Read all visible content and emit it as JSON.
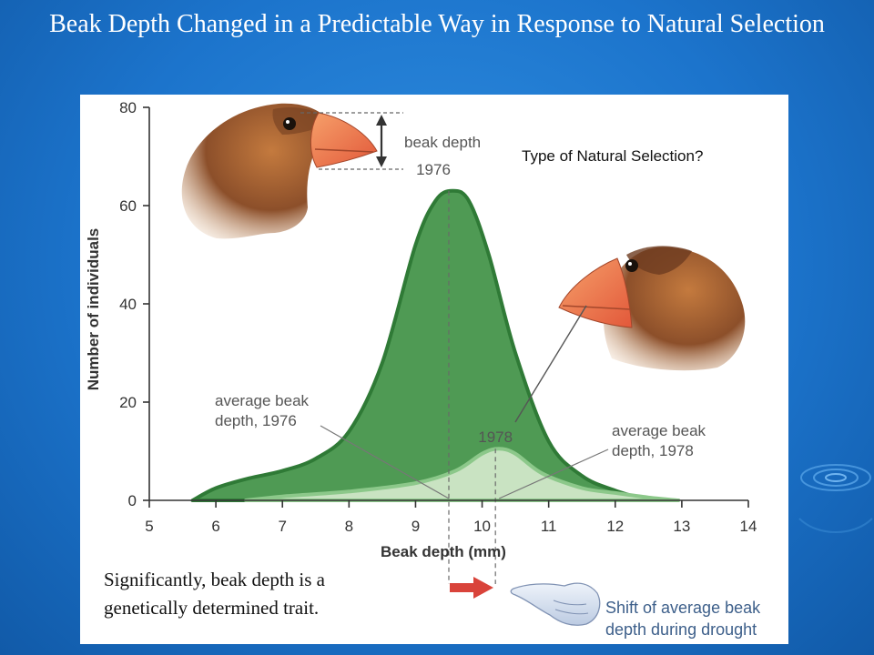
{
  "slide": {
    "title": "Beak Depth Changed in a Predictable Way in Response to Natural Selection",
    "question": "Type of Natural Selection?",
    "caption": "Significantly, beak depth is a genetically determined trait."
  },
  "colors": {
    "background": "#1c74cc",
    "dark_green": "#4f9a54",
    "dark_green_edge": "#2f7a36",
    "light_green": "#c9e3c2",
    "light_green_edge": "#8cc88a",
    "arrow_red": "#d9433a"
  },
  "chart_data": {
    "type": "area",
    "title": "",
    "xlabel": "Beak depth (mm)",
    "ylabel": "Number of individuals",
    "xlim": [
      5,
      14
    ],
    "ylim": [
      0,
      80
    ],
    "x_ticks": [
      "5",
      "6",
      "7",
      "8",
      "9",
      "10",
      "11",
      "12",
      "13",
      "14"
    ],
    "y_ticks": [
      "0",
      "20",
      "40",
      "60",
      "80"
    ],
    "grid": false,
    "series": [
      {
        "name": "1976",
        "x": [
          5.65,
          6.0,
          6.5,
          7.0,
          7.5,
          8.0,
          8.5,
          9.0,
          9.3,
          9.55,
          9.8,
          10.1,
          10.5,
          11.0,
          11.5,
          12.0,
          12.5
        ],
        "y": [
          0,
          2.5,
          4.5,
          6,
          8.5,
          14,
          28,
          52,
          61,
          63,
          61,
          50,
          30,
          12,
          5,
          2,
          0
        ]
      },
      {
        "name": "1978",
        "x": [
          6.45,
          7.0,
          8.0,
          9.0,
          9.6,
          10.0,
          10.25,
          10.5,
          10.9,
          11.5,
          12.0,
          12.5,
          12.95
        ],
        "y": [
          0,
          0.8,
          1.8,
          3.5,
          6,
          9.5,
          10.5,
          9.5,
          5.5,
          2.5,
          1.5,
          0.6,
          0
        ]
      }
    ],
    "annotations": {
      "beak_depth_label_1": "beak depth",
      "beak_depth_label_2": "1976",
      "avg_1976_line1": "average beak",
      "avg_1976_line2": "depth, 1976",
      "avg_1976_x": 9.5,
      "label_1978": "1978",
      "avg_1978_line1": "average beak",
      "avg_1978_line2": "depth, 1978",
      "avg_1978_x": 10.2,
      "shift_line1": "Shift of average beak",
      "shift_line2": "depth during drought"
    }
  }
}
